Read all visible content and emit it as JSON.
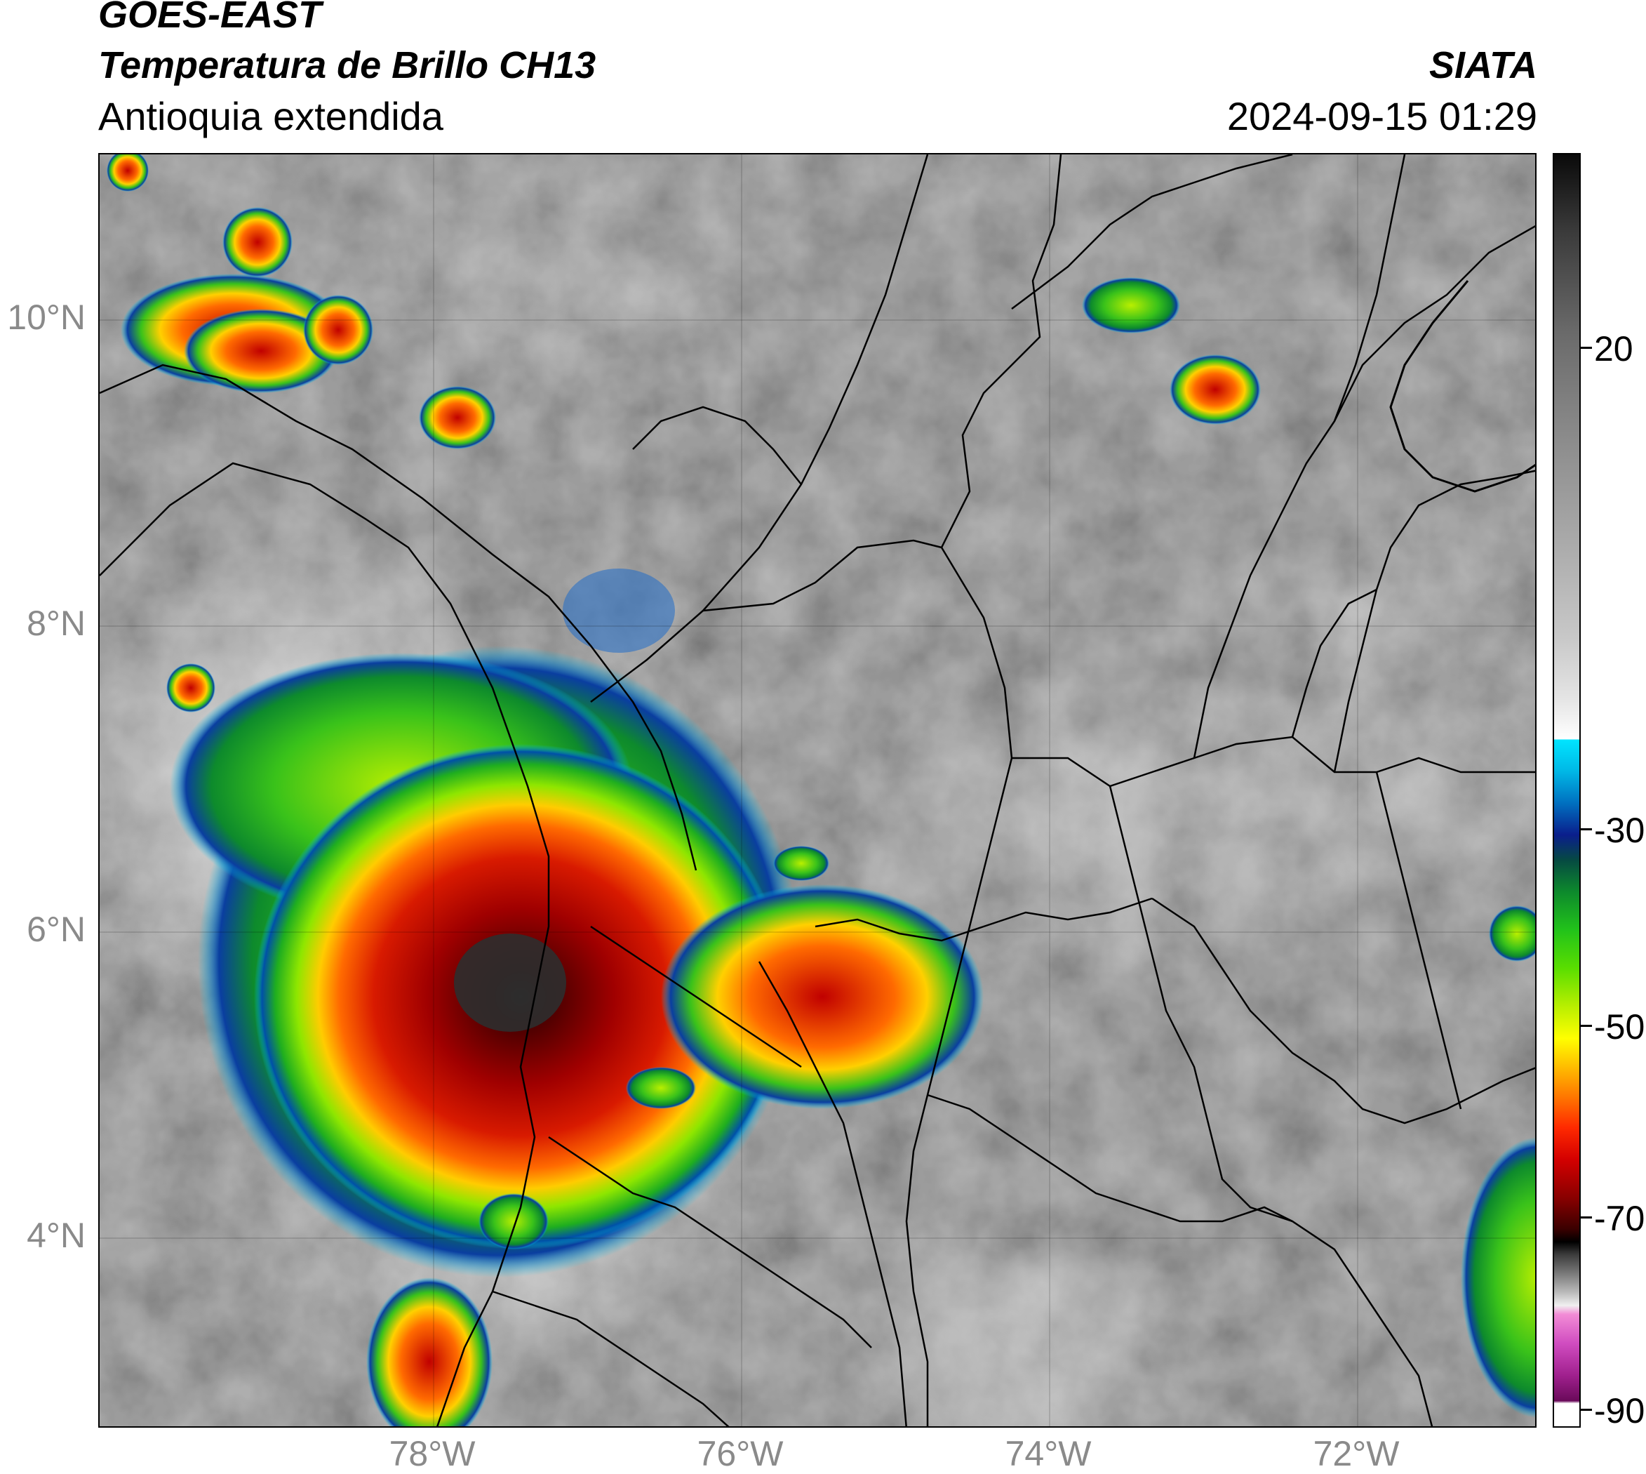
{
  "header": {
    "satellite": "GOES-EAST",
    "product": "Temperatura de Brillo CH13",
    "region": "Antioquia extendida",
    "organization": "SIATA",
    "datetime": "2024-09-15 01:29"
  },
  "map": {
    "lat_labels": [
      "10°N",
      "8°N",
      "6°N",
      "4°N"
    ],
    "lon_labels": [
      "78°W",
      "76°W",
      "74°W",
      "72°W"
    ]
  },
  "colorbar": {
    "ticks": [
      "20",
      "-30",
      "-50",
      "-70",
      "-90"
    ],
    "colors": {
      "cold_black": "#000000",
      "red": "#d40000",
      "orange": "#ff7a00",
      "yellow": "#ffff00",
      "green": "#22c31a",
      "dark_green": "#0d8a2c",
      "blue": "#0070c0",
      "navy": "#0a1e8c",
      "cyan": "#00e5ff",
      "magenta": "#d04cc0",
      "purple": "#6a0a5a"
    }
  }
}
